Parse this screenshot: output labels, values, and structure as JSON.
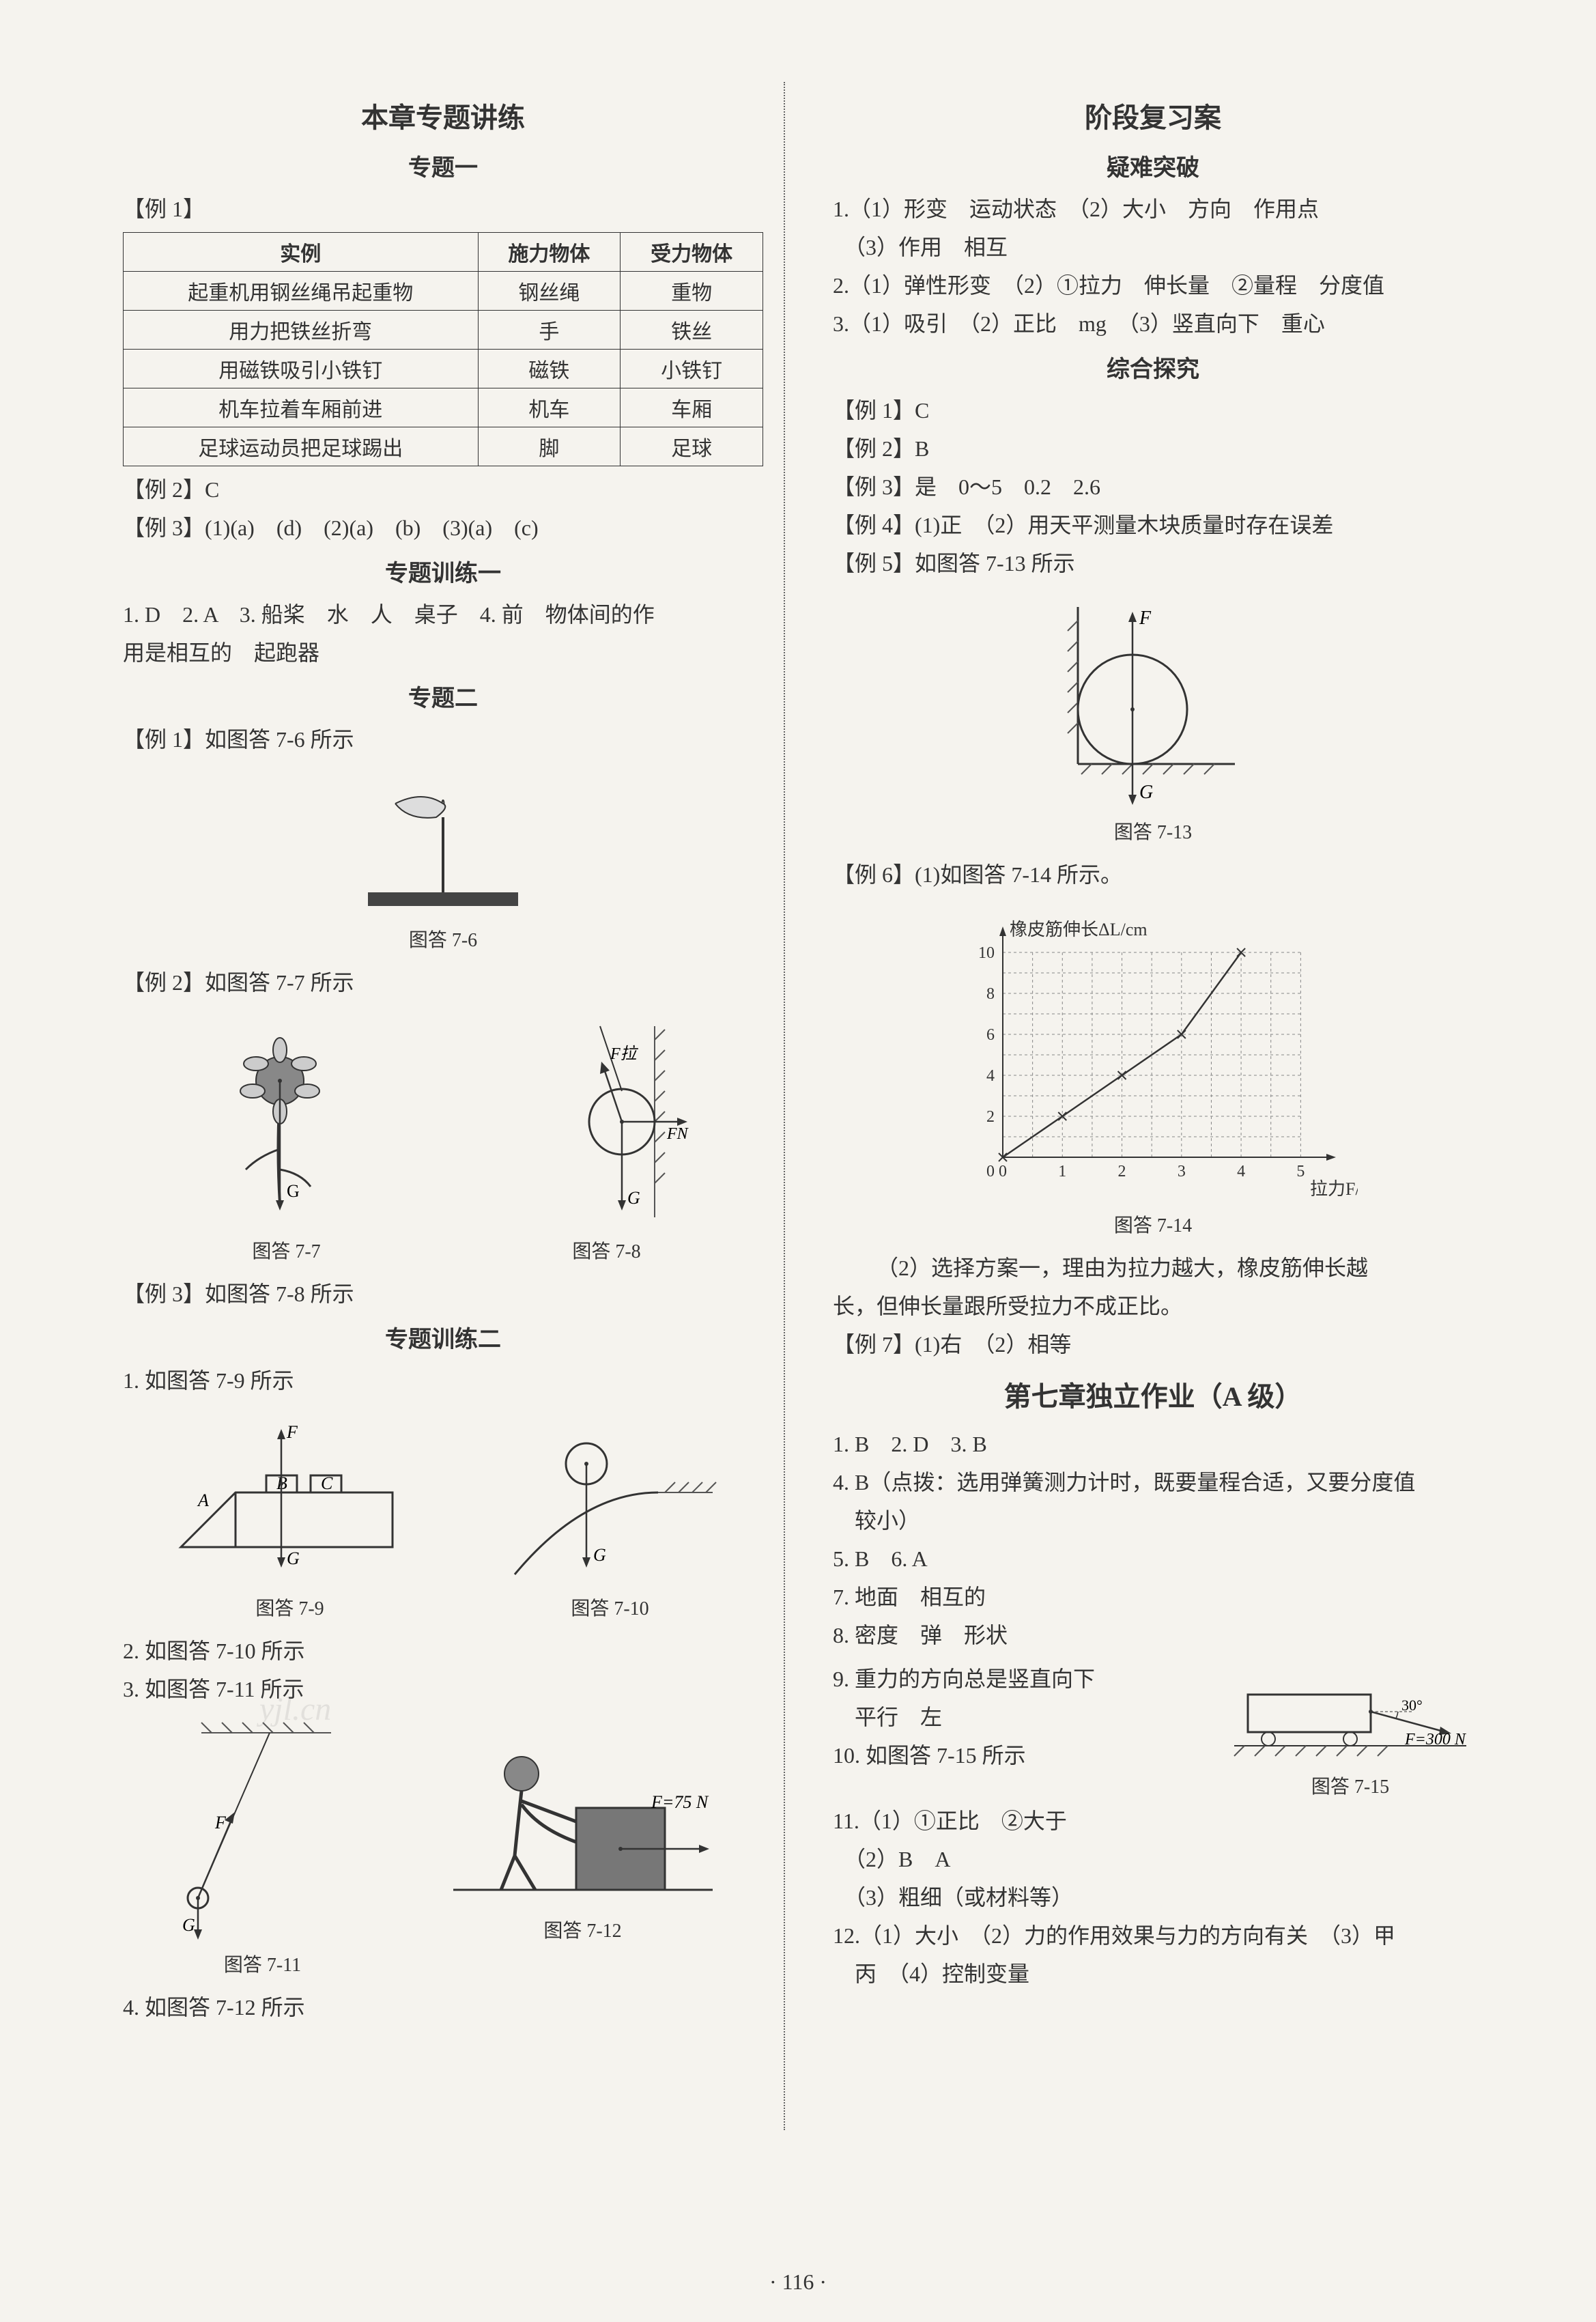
{
  "left": {
    "chapter_title": "本章专题讲练",
    "topic1_title": "专题一",
    "ex1_label": "【例 1】",
    "table": {
      "columns": [
        "实例",
        "施力物体",
        "受力物体"
      ],
      "rows": [
        [
          "起重机用钢丝绳吊起重物",
          "钢丝绳",
          "重物"
        ],
        [
          "用力把铁丝折弯",
          "手",
          "铁丝"
        ],
        [
          "用磁铁吸引小铁钉",
          "磁铁",
          "小铁钉"
        ],
        [
          "机车拉着车厢前进",
          "机车",
          "车厢"
        ],
        [
          "足球运动员把足球踢出",
          "脚",
          "足球"
        ]
      ]
    },
    "ex2": "【例 2】C",
    "ex3": "【例 3】(1)(a)　(d)　(2)(a)　(b)　(3)(a)　(c)",
    "training1_title": "专题训练一",
    "training1_line1": "1. D　2. A　3. 船桨　水　人　桌子　4. 前　物体间的作",
    "training1_line2": "用是相互的　起跑器",
    "topic2_title": "专题二",
    "ex2_1": "【例 1】如图答 7-6 所示",
    "fig76_caption": "图答 7-6",
    "ex2_2": "【例 2】如图答 7-7 所示",
    "fig77_caption": "图答 7-7",
    "fig78_caption": "图答 7-8",
    "fig78_FL": "F拉",
    "fig78_FN": "FN",
    "fig78_G": "G",
    "fig77_G": "G",
    "ex2_3": "【例 3】如图答 7-8 所示",
    "training2_title": "专题训练二",
    "training2_1": "1. 如图答 7-9 所示",
    "fig79_caption": "图答 7-9",
    "fig79_F": "F",
    "fig79_G": "G",
    "fig79_A": "A",
    "fig79_B": "B",
    "fig79_C": "C",
    "fig710_caption": "图答 7-10",
    "fig710_G": "G",
    "training2_2": "2. 如图答 7-10 所示",
    "training2_3": "3. 如图答 7-11 所示",
    "fig711_caption": "图答 7-11",
    "fig711_F": "F",
    "fig711_G": "G",
    "fig712_caption": "图答 7-12",
    "fig712_F": "F=75 N",
    "training2_4": "4. 如图答 7-12 所示",
    "watermark1": "yjl.cn"
  },
  "right": {
    "stage_title": "阶段复习案",
    "difficulty_title": "疑难突破",
    "diff_line1": "1.（1）形变　运动状态　（2）大小　方向　作用点",
    "diff_line2": "　（3）作用　相互",
    "diff_line3": "2.（1）弹性形变　（2）①拉力　伸长量　②量程　分度值",
    "diff_line4": "3.（1）吸引　（2）正比　mg　（3）竖直向下　重心",
    "inquiry_title": "综合探究",
    "inq_ex1": "【例 1】C",
    "inq_ex2": "【例 2】B",
    "inq_ex3": "【例 3】是　0～5　0.2　2.6",
    "inq_ex4": "【例 4】(1)正　（2）用天平测量木块质量时存在误差",
    "inq_ex5": "【例 5】如图答 7-13 所示",
    "fig713_caption": "图答 7-13",
    "fig713_F": "F",
    "fig713_G": "G",
    "inq_ex6": "【例 6】(1)如图答 7-14 所示。",
    "chart714": {
      "type": "line",
      "x_label": "拉力F/N",
      "y_label": "橡皮筋伸长ΔL/cm",
      "x_ticks": [
        0,
        1,
        2,
        3,
        4,
        5
      ],
      "y_ticks": [
        0,
        2,
        4,
        6,
        8,
        10
      ],
      "xlim": [
        0,
        5.5
      ],
      "ylim": [
        0,
        11
      ],
      "points": [
        [
          0,
          0
        ],
        [
          1,
          2
        ],
        [
          2,
          4
        ],
        [
          3,
          6
        ],
        [
          4,
          10
        ]
      ],
      "line_color": "#333333",
      "grid_color": "#888888",
      "background_color": "#f5f3ee",
      "marker": "x",
      "caption": "图答 7-14"
    },
    "inq_ex6_2a": "（2）选择方案一，理由为拉力越大，橡皮筋伸长越",
    "inq_ex6_2b": "长，但伸长量跟所受拉力不成正比。",
    "inq_ex7": "【例 7】(1)右　（2）相等",
    "hw_title": "第七章独立作业（A 级）",
    "hw_line1": "1. B　2. D　3. B",
    "hw_line4a": "4. B（点拨：选用弹簧测力计时，既要量程合适，又要分度值",
    "hw_line4b": "　较小）",
    "hw_line5": "5. B　6. A",
    "hw_line7": "7. 地面　相互的",
    "hw_line8": "8. 密度　弹　形状",
    "hw_line9a": "9. 重力的方向总是竖直向下",
    "hw_line9b": "　平行　左",
    "hw_line10": "10. 如图答 7-15 所示",
    "fig715_caption": "图答 7-15",
    "fig715_angle": "30°",
    "fig715_F": "F=300 N",
    "hw_line11a": "11.（1）①正比　②大于",
    "hw_line11b": "　（2）B　A",
    "hw_line11c": "　（3）粗细（或材料等）",
    "hw_line12a": "12.（1）大小　（2）力的作用效果与力的方向有关　（3）甲",
    "hw_line12b": "　丙　（4）控制变量"
  },
  "page_number": "· 116 ·",
  "colors": {
    "text": "#333333",
    "border": "#333333",
    "bg": "#f5f3ee",
    "hatch": "#555555"
  }
}
